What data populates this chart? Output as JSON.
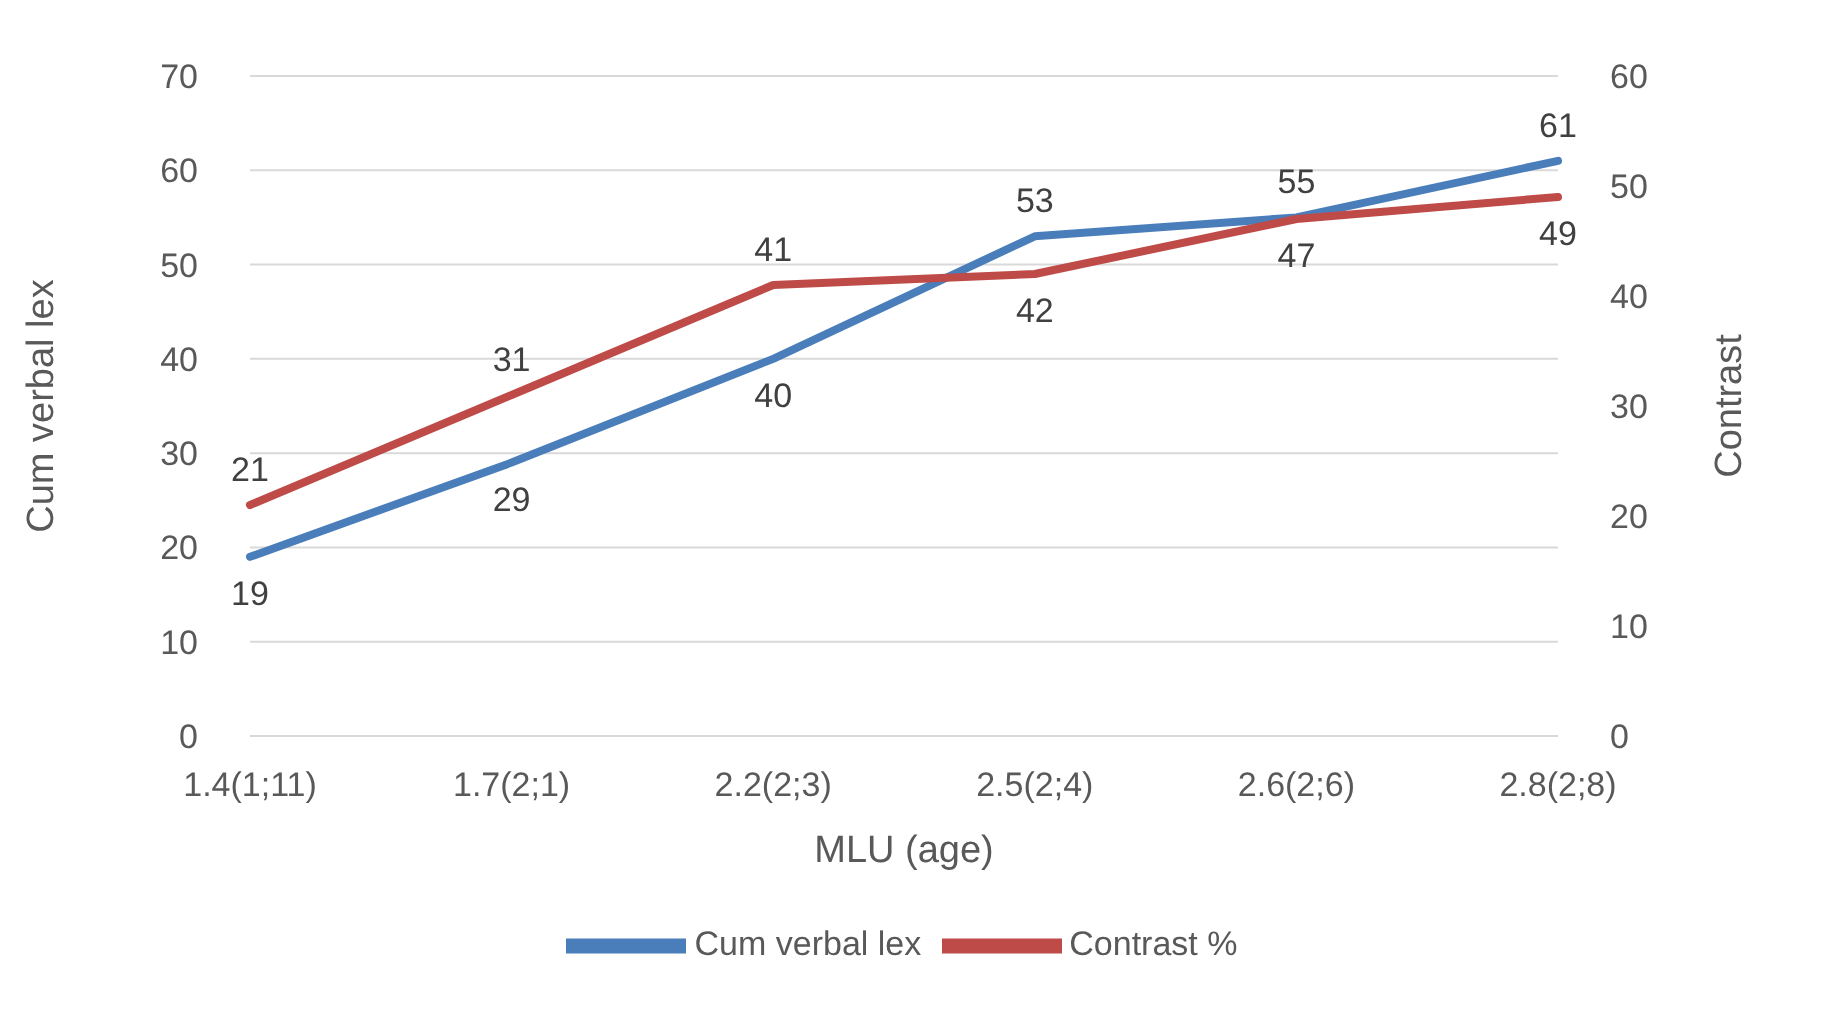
{
  "chart_data": {
    "type": "line",
    "xlabel": "MLU (age)",
    "ylabel": "Cum verbal lex",
    "y2label": "Contrast",
    "categories": [
      "1.4(1;11)",
      "1.7(2;1)",
      "2.2(2;3)",
      "2.5(2;4)",
      "2.6(2;6)",
      "2.8(2;8)"
    ],
    "series": [
      {
        "name": "Cum verbal lex",
        "color": "#4a7ebb",
        "values": [
          19,
          29,
          40,
          53,
          55,
          61
        ]
      },
      {
        "name": "Contrast %",
        "color": "#be4b48",
        "axis": "y2",
        "values": [
          21,
          31,
          41,
          42,
          47,
          49
        ]
      }
    ],
    "ylim": [
      0,
      70
    ],
    "yticks": [
      0,
      10,
      20,
      30,
      40,
      50,
      60,
      70
    ],
    "y2lim": [
      0,
      60
    ],
    "y2ticks": [
      0,
      10,
      20,
      30,
      40,
      50,
      60
    ],
    "grid": "y",
    "legend": "bottom",
    "marker": "none",
    "line_style": "solid",
    "data_labels": true
  }
}
